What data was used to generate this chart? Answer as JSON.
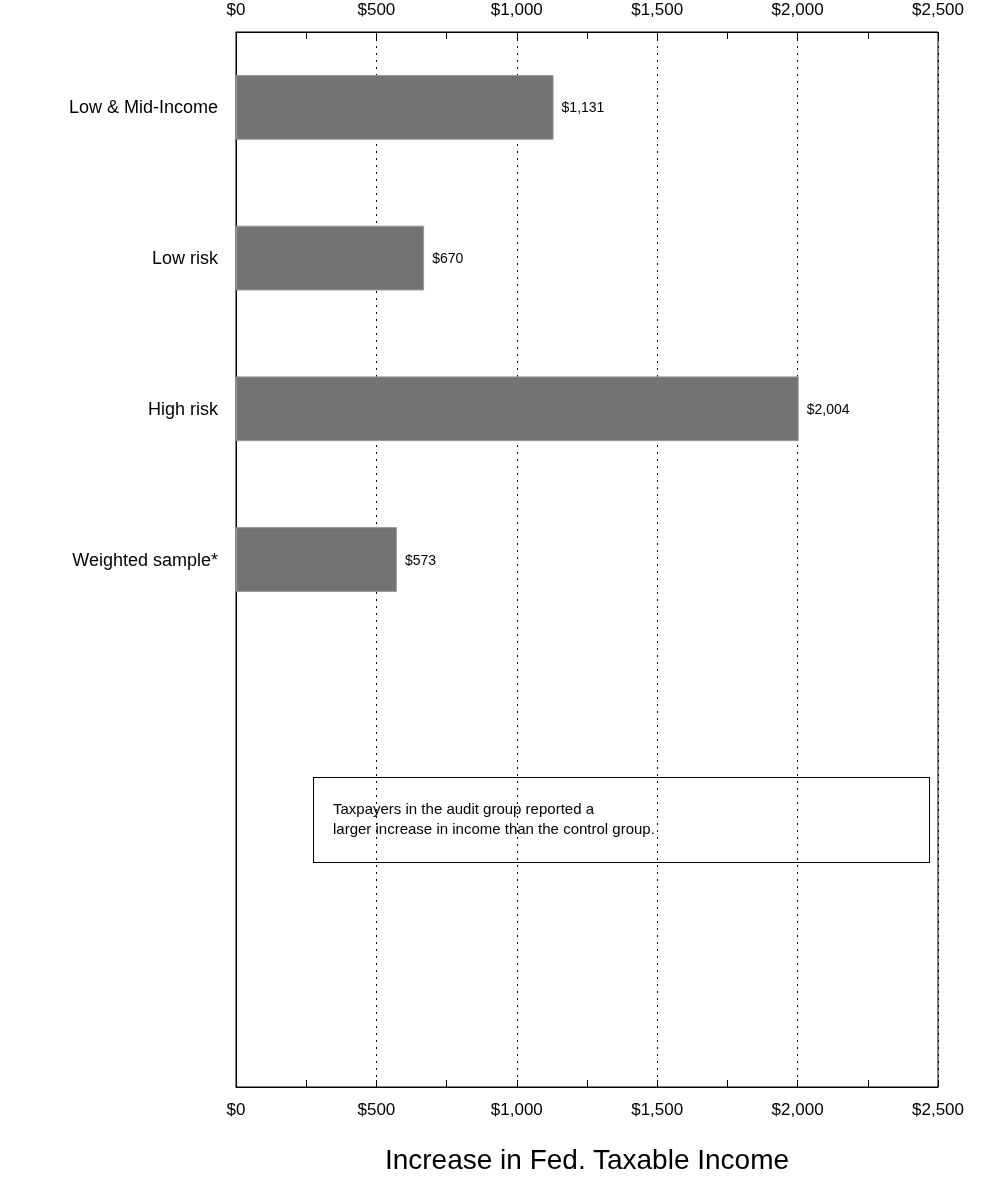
{
  "chart_data": {
    "type": "bar",
    "orientation": "horizontal",
    "xlabel": "Increase in Fed. Taxable Income",
    "categories": [
      "Low & Mid-Income",
      "Low risk",
      "High risk",
      "Weighted sample*",
      null,
      null,
      null
    ],
    "values": [
      1131,
      670,
      2004,
      573,
      null,
      null,
      null
    ],
    "value_labels": [
      "$1,131",
      "$670",
      "$2,004",
      "$573",
      null,
      null,
      null
    ],
    "color": "#737373",
    "xlim": [
      0,
      2500
    ],
    "xticks": [
      {
        "value": 0,
        "label": "$0"
      },
      {
        "value": 250,
        "label": null
      },
      {
        "value": 500,
        "label": "$500"
      },
      {
        "value": 750,
        "label": null
      },
      {
        "value": 1000,
        "label": "$1,000"
      },
      {
        "value": 1250,
        "label": null
      },
      {
        "value": 1500,
        "label": "$1,500"
      },
      {
        "value": 1750,
        "label": null
      },
      {
        "value": 2000,
        "label": "$2,000"
      },
      {
        "value": 2250,
        "label": null
      },
      {
        "value": 2500,
        "label": "$2,500"
      }
    ],
    "x2lim": [
      0,
      2500
    ],
    "x2ticks": [
      {
        "value": 0,
        "label": "$0"
      },
      {
        "value": 250,
        "label": null
      },
      {
        "value": 500,
        "label": "$500"
      },
      {
        "value": 750,
        "label": null
      },
      {
        "value": 1000,
        "label": "$1,000"
      },
      {
        "value": 1250,
        "label": null
      },
      {
        "value": 1500,
        "label": "$1,500"
      },
      {
        "value": 1750,
        "label": null
      },
      {
        "value": 2000,
        "label": "$2,000"
      },
      {
        "value": 2250,
        "label": null
      },
      {
        "value": 2500,
        "label": "$2,500"
      }
    ],
    "grid": "x",
    "annotations": [
      "Taxpayers in the audit group reported a\nlarger increase in income than the control group."
    ]
  }
}
